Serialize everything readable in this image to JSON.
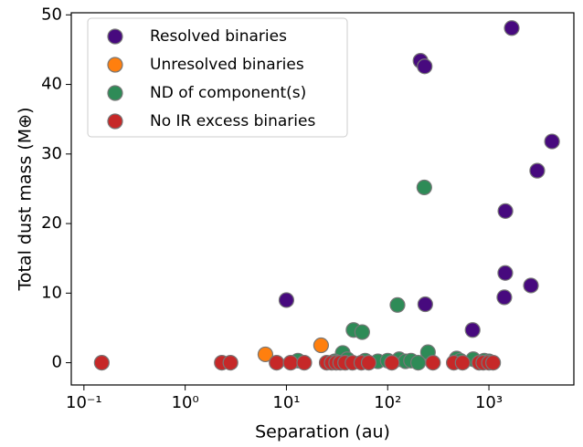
{
  "chart_data": {
    "type": "scatter",
    "x_label": "Separation (au)",
    "y_label": "Total dust mass (M⊕)",
    "xscale": "log",
    "xlim": [
      0.075,
      6900
    ],
    "ylim": [
      -3.2,
      50.3
    ],
    "xticks": [
      {
        "value": 0.1,
        "label": "10⁻¹"
      },
      {
        "value": 1,
        "label": "10⁰"
      },
      {
        "value": 10,
        "label": "10¹"
      },
      {
        "value": 100,
        "label": "10²"
      },
      {
        "value": 1000,
        "label": "10³"
      }
    ],
    "yticks": [
      0,
      10,
      20,
      30,
      40,
      50
    ],
    "legend": "upper left",
    "series": [
      {
        "name": "Resolved binaries",
        "color": "#470a7e",
        "x": [
          10,
          211,
          232,
          1680,
          4200,
          3000,
          1455,
          1450,
          1420,
          2600,
          235,
          690
        ],
        "values": [
          9,
          43.4,
          42.6,
          48.1,
          31.8,
          27.6,
          21.8,
          12.9,
          9.4,
          11.1,
          8.4,
          4.7
        ]
      },
      {
        "name": "Unresolved binaries",
        "color": "#ff7f0e",
        "x": [
          6.2,
          22
        ],
        "values": [
          1.2,
          2.5
        ]
      },
      {
        "name": "ND of component(s)",
        "color": "#2e8b57",
        "x": [
          125,
          230,
          46,
          56,
          36,
          250,
          13,
          30,
          40,
          60,
          80,
          100,
          130,
          150,
          170,
          200,
          480,
          520,
          700,
          900,
          1000
        ],
        "values": [
          8.3,
          25.2,
          4.7,
          4.4,
          1.4,
          1.5,
          0.3,
          0.2,
          0.5,
          0.3,
          0.2,
          0.3,
          0.5,
          0.2,
          0.3,
          0,
          0.6,
          0.3,
          0.5,
          0.3,
          0.2
        ]
      },
      {
        "name": "No IR excess binaries",
        "color": "#c62828",
        "x": [
          0.15,
          2.3,
          2.8,
          8,
          11,
          15,
          25,
          28,
          31,
          34,
          38,
          45,
          55,
          65,
          110,
          280,
          450,
          550,
          800,
          880,
          1000,
          1100
        ],
        "values": [
          0,
          0,
          0,
          0,
          0,
          0,
          0,
          0,
          0,
          0,
          0,
          0,
          0,
          0,
          0,
          0,
          0,
          0,
          0,
          0,
          0,
          0
        ]
      }
    ]
  }
}
